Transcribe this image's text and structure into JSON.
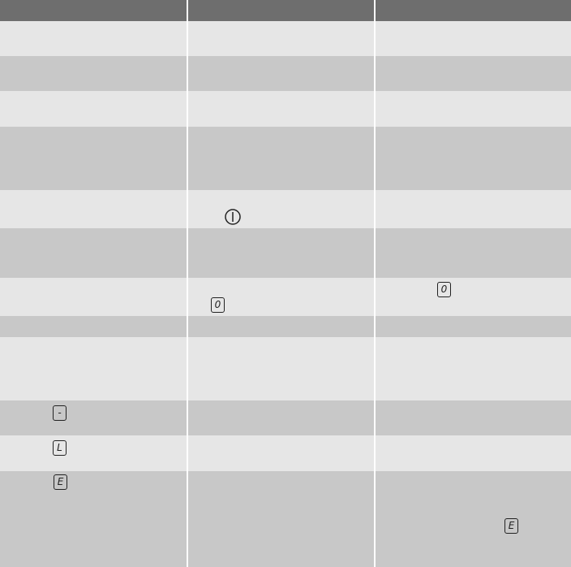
{
  "table": {
    "symbols": {
      "minus": "-",
      "lock": "L",
      "zero": "0",
      "error": "E"
    }
  }
}
